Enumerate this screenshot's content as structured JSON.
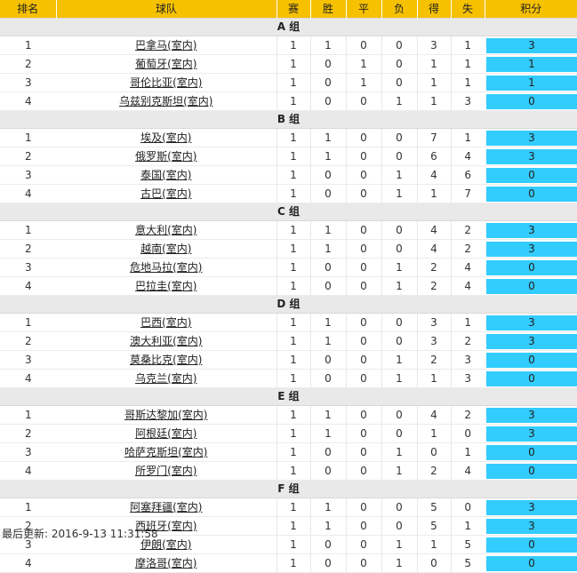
{
  "headers": {
    "rank": "排名",
    "team": "球队",
    "played": "赛",
    "win": "胜",
    "draw": "平",
    "loss": "负",
    "gf": "得",
    "ga": "失",
    "pts": "积分"
  },
  "groups": [
    {
      "label": "A 组",
      "teams": [
        {
          "rank": "1",
          "name": "巴拿马(室内)",
          "p": "1",
          "w": "1",
          "d": "0",
          "l": "0",
          "gf": "3",
          "ga": "1",
          "pts": "3"
        },
        {
          "rank": "2",
          "name": "葡萄牙(室内)",
          "p": "1",
          "w": "0",
          "d": "1",
          "l": "0",
          "gf": "1",
          "ga": "1",
          "pts": "1"
        },
        {
          "rank": "3",
          "name": "哥伦比亚(室内)",
          "p": "1",
          "w": "0",
          "d": "1",
          "l": "0",
          "gf": "1",
          "ga": "1",
          "pts": "1"
        },
        {
          "rank": "4",
          "name": "乌兹别克斯坦(室内)",
          "p": "1",
          "w": "0",
          "d": "0",
          "l": "1",
          "gf": "1",
          "ga": "3",
          "pts": "0"
        }
      ]
    },
    {
      "label": "B 组",
      "teams": [
        {
          "rank": "1",
          "name": "埃及(室内)",
          "p": "1",
          "w": "1",
          "d": "0",
          "l": "0",
          "gf": "7",
          "ga": "1",
          "pts": "3"
        },
        {
          "rank": "2",
          "name": "俄罗斯(室内)",
          "p": "1",
          "w": "1",
          "d": "0",
          "l": "0",
          "gf": "6",
          "ga": "4",
          "pts": "3"
        },
        {
          "rank": "3",
          "name": "泰国(室内)",
          "p": "1",
          "w": "0",
          "d": "0",
          "l": "1",
          "gf": "4",
          "ga": "6",
          "pts": "0"
        },
        {
          "rank": "4",
          "name": "古巴(室内)",
          "p": "1",
          "w": "0",
          "d": "0",
          "l": "1",
          "gf": "1",
          "ga": "7",
          "pts": "0"
        }
      ]
    },
    {
      "label": "C 组",
      "teams": [
        {
          "rank": "1",
          "name": "意大利(室内)",
          "p": "1",
          "w": "1",
          "d": "0",
          "l": "0",
          "gf": "4",
          "ga": "2",
          "pts": "3"
        },
        {
          "rank": "2",
          "name": "越南(室内)",
          "p": "1",
          "w": "1",
          "d": "0",
          "l": "0",
          "gf": "4",
          "ga": "2",
          "pts": "3"
        },
        {
          "rank": "3",
          "name": "危地马拉(室内)",
          "p": "1",
          "w": "0",
          "d": "0",
          "l": "1",
          "gf": "2",
          "ga": "4",
          "pts": "0"
        },
        {
          "rank": "4",
          "name": "巴拉圭(室内)",
          "p": "1",
          "w": "0",
          "d": "0",
          "l": "1",
          "gf": "2",
          "ga": "4",
          "pts": "0"
        }
      ]
    },
    {
      "label": "D 组",
      "teams": [
        {
          "rank": "1",
          "name": "巴西(室内)",
          "p": "1",
          "w": "1",
          "d": "0",
          "l": "0",
          "gf": "3",
          "ga": "1",
          "pts": "3"
        },
        {
          "rank": "2",
          "name": "澳大利亚(室内)",
          "p": "1",
          "w": "1",
          "d": "0",
          "l": "0",
          "gf": "3",
          "ga": "2",
          "pts": "3"
        },
        {
          "rank": "3",
          "name": "莫桑比克(室内)",
          "p": "1",
          "w": "0",
          "d": "0",
          "l": "1",
          "gf": "2",
          "ga": "3",
          "pts": "0"
        },
        {
          "rank": "4",
          "name": "乌克兰(室内)",
          "p": "1",
          "w": "0",
          "d": "0",
          "l": "1",
          "gf": "1",
          "ga": "3",
          "pts": "0"
        }
      ]
    },
    {
      "label": "E 组",
      "teams": [
        {
          "rank": "1",
          "name": "哥斯达黎加(室内)",
          "p": "1",
          "w": "1",
          "d": "0",
          "l": "0",
          "gf": "4",
          "ga": "2",
          "pts": "3"
        },
        {
          "rank": "2",
          "name": "阿根廷(室内)",
          "p": "1",
          "w": "1",
          "d": "0",
          "l": "0",
          "gf": "1",
          "ga": "0",
          "pts": "3"
        },
        {
          "rank": "3",
          "name": "哈萨克斯坦(室内)",
          "p": "1",
          "w": "0",
          "d": "0",
          "l": "1",
          "gf": "0",
          "ga": "1",
          "pts": "0"
        },
        {
          "rank": "4",
          "name": "所罗门(室内)",
          "p": "1",
          "w": "0",
          "d": "0",
          "l": "1",
          "gf": "2",
          "ga": "4",
          "pts": "0"
        }
      ]
    },
    {
      "label": "F 组",
      "teams": [
        {
          "rank": "1",
          "name": "阿塞拜疆(室内)",
          "p": "1",
          "w": "1",
          "d": "0",
          "l": "0",
          "gf": "5",
          "ga": "0",
          "pts": "3"
        },
        {
          "rank": "2",
          "name": "西班牙(室内)",
          "p": "1",
          "w": "1",
          "d": "0",
          "l": "0",
          "gf": "5",
          "ga": "1",
          "pts": "3"
        },
        {
          "rank": "3",
          "name": "伊朗(室内)",
          "p": "1",
          "w": "0",
          "d": "0",
          "l": "1",
          "gf": "1",
          "ga": "5",
          "pts": "0"
        },
        {
          "rank": "4",
          "name": "摩洛哥(室内)",
          "p": "1",
          "w": "0",
          "d": "0",
          "l": "1",
          "gf": "0",
          "ga": "5",
          "pts": "0"
        }
      ]
    }
  ],
  "footer": {
    "label": "最后更新: ",
    "timestamp": "2016-9-13 11:31:58"
  },
  "colors": {
    "header_bg": "#f6c100",
    "group_bg": "#e9e9e9",
    "points_bg": "#33ccff"
  }
}
